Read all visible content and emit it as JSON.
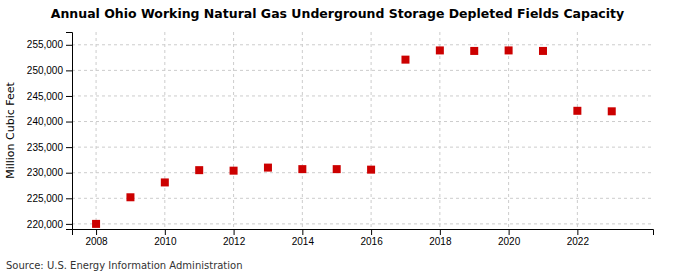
{
  "chart_data": {
    "type": "scatter",
    "title": "Annual Ohio Working Natural Gas Underground Storage Depleted Fields Capacity",
    "ylabel": "Million Cubic Feet",
    "source": "Source: U.S. Energy Information Administration",
    "x": [
      2008,
      2009,
      2010,
      2011,
      2012,
      2013,
      2014,
      2015,
      2016,
      2017,
      2018,
      2019,
      2020,
      2021,
      2022,
      2023
    ],
    "values": [
      220000,
      225200,
      228100,
      230500,
      230400,
      231000,
      230700,
      230700,
      230600,
      252100,
      253900,
      253800,
      253900,
      253800,
      242100,
      242000
    ],
    "color": "#cc0000",
    "marker": "square",
    "xlim": [
      2007.3,
      2024.2
    ],
    "xticks": [
      2008,
      2010,
      2012,
      2014,
      2016,
      2018,
      2020,
      2022
    ],
    "ylim": [
      219000,
      257500
    ],
    "yticks": [
      {
        "value": 220000,
        "label": "220,000"
      },
      {
        "value": 225000,
        "label": "225,000"
      },
      {
        "value": 230000,
        "label": "230,000"
      },
      {
        "value": 235000,
        "label": "235,000"
      },
      {
        "value": 240000,
        "label": "240,000"
      },
      {
        "value": 245000,
        "label": "245,000"
      },
      {
        "value": 250000,
        "label": "250,000"
      },
      {
        "value": 255000,
        "label": "255,000"
      }
    ],
    "grid": true
  }
}
